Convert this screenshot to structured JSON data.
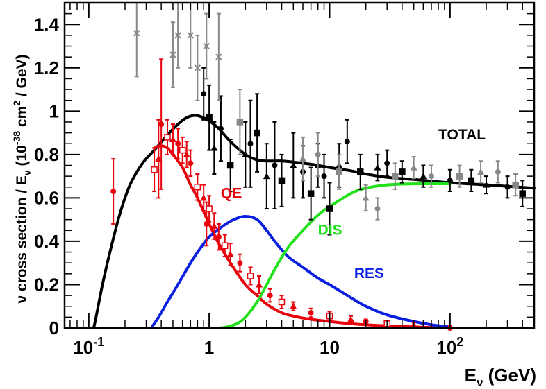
{
  "chart_data": {
    "type": "line",
    "title": "",
    "xlabel": "E",
    "xlabel_sub": "ν",
    "xlabel_unit": " (GeV)",
    "ylabel_parts": {
      "a": "ν cross section / E",
      "sub": "ν",
      "b": " (10",
      "sup": "-38",
      "c": " cm",
      "sup2": "2",
      "d": " / GeV)"
    },
    "xscale": "log",
    "xlim": [
      0.063,
      500
    ],
    "ylim": [
      0,
      1.5
    ],
    "x_ticks": [
      {
        "value": 0.1,
        "base": "10",
        "exp": "-1"
      },
      {
        "value": 1,
        "base": "1",
        "exp": ""
      },
      {
        "value": 10,
        "base": "10",
        "exp": ""
      },
      {
        "value": 100,
        "base": "10",
        "exp": "2"
      }
    ],
    "y_ticks": [
      {
        "value": 0,
        "label": "0"
      },
      {
        "value": 0.2,
        "label": "0.2"
      },
      {
        "value": 0.4,
        "label": "0.4"
      },
      {
        "value": 0.6,
        "label": "0.6"
      },
      {
        "value": 0.8,
        "label": "0.8"
      },
      {
        "value": 1.0,
        "label": "1"
      },
      {
        "value": 1.2,
        "label": "1.2"
      },
      {
        "value": 1.4,
        "label": "1.4"
      }
    ],
    "series": [
      {
        "name": "TOTAL",
        "color": "#000000",
        "x": [
          0.11,
          0.115,
          0.13,
          0.15,
          0.18,
          0.22,
          0.28,
          0.35,
          0.45,
          0.55,
          0.65,
          0.75,
          0.85,
          1.0,
          1.2,
          1.5,
          2.0,
          2.5,
          3.0,
          4.0,
          5.0,
          7.0,
          10,
          15,
          20,
          30,
          50,
          100,
          200,
          500
        ],
        "y": [
          0.0,
          0.05,
          0.2,
          0.35,
          0.52,
          0.66,
          0.76,
          0.82,
          0.89,
          0.94,
          0.97,
          0.98,
          0.975,
          0.955,
          0.92,
          0.86,
          0.8,
          0.775,
          0.77,
          0.77,
          0.765,
          0.755,
          0.74,
          0.725,
          0.71,
          0.695,
          0.685,
          0.67,
          0.66,
          0.645
        ]
      },
      {
        "name": "QE",
        "color": "#e8000b",
        "x": [
          0.35,
          0.4,
          0.45,
          0.5,
          0.6,
          0.7,
          0.8,
          1.0,
          1.2,
          1.5,
          2.0,
          2.5,
          3.0,
          4.0,
          5.0,
          7.0,
          10,
          15,
          20,
          30,
          50,
          100
        ],
        "y": [
          0.83,
          0.84,
          0.83,
          0.8,
          0.74,
          0.66,
          0.6,
          0.48,
          0.39,
          0.3,
          0.2,
          0.15,
          0.11,
          0.07,
          0.055,
          0.04,
          0.03,
          0.02,
          0.015,
          0.01,
          0.005,
          0.0
        ]
      },
      {
        "name": "RES",
        "color": "#0a1fe0",
        "x": [
          0.33,
          0.38,
          0.45,
          0.55,
          0.7,
          0.85,
          1.0,
          1.3,
          1.6,
          2.0,
          2.5,
          3.0,
          3.5,
          4.5,
          6.0,
          8.0,
          10,
          15,
          20,
          30,
          50,
          70,
          100
        ],
        "y": [
          0.0,
          0.05,
          0.12,
          0.2,
          0.3,
          0.37,
          0.42,
          0.47,
          0.5,
          0.515,
          0.5,
          0.45,
          0.4,
          0.33,
          0.28,
          0.23,
          0.2,
          0.14,
          0.1,
          0.06,
          0.03,
          0.015,
          0.005
        ]
      },
      {
        "name": "DIS",
        "color": "#22e01c",
        "x": [
          1.2,
          1.4,
          1.7,
          2.0,
          2.5,
          3.0,
          3.5,
          4.5,
          6.0,
          8.0,
          10,
          15,
          20,
          30,
          50,
          100
        ],
        "y": [
          0.0,
          0.005,
          0.02,
          0.05,
          0.12,
          0.2,
          0.27,
          0.37,
          0.45,
          0.52,
          0.56,
          0.62,
          0.645,
          0.66,
          0.665,
          0.665
        ]
      }
    ],
    "data_points": {
      "red": [
        {
          "x": 0.16,
          "y": 0.63,
          "err": 0.15
        },
        {
          "x": 0.35,
          "y": 0.73,
          "err": 0.1
        },
        {
          "x": 0.38,
          "y": 0.78,
          "err": 0.18
        },
        {
          "x": 0.4,
          "y": 0.94,
          "err": 0.3
        },
        {
          "x": 0.45,
          "y": 0.88,
          "err": 0.08
        },
        {
          "x": 0.5,
          "y": 0.87,
          "err": 0.07
        },
        {
          "x": 0.55,
          "y": 0.85,
          "err": 0.07
        },
        {
          "x": 0.6,
          "y": 0.82,
          "err": 0.06
        },
        {
          "x": 0.65,
          "y": 0.8,
          "err": 0.06
        },
        {
          "x": 0.7,
          "y": 0.76,
          "err": 0.06
        },
        {
          "x": 0.8,
          "y": 0.65,
          "err": 0.06
        },
        {
          "x": 0.9,
          "y": 0.6,
          "err": 0.06
        },
        {
          "x": 0.95,
          "y": 0.48,
          "err": 0.1
        },
        {
          "x": 1.0,
          "y": 0.55,
          "err": 0.06
        },
        {
          "x": 1.1,
          "y": 0.47,
          "err": 0.06
        },
        {
          "x": 1.2,
          "y": 0.42,
          "err": 0.06
        },
        {
          "x": 1.35,
          "y": 0.38,
          "err": 0.05
        },
        {
          "x": 1.5,
          "y": 0.34,
          "err": 0.05
        },
        {
          "x": 1.8,
          "y": 0.3,
          "err": 0.04
        },
        {
          "x": 2.2,
          "y": 0.24,
          "err": 0.04
        },
        {
          "x": 2.6,
          "y": 0.2,
          "err": 0.04
        },
        {
          "x": 3.2,
          "y": 0.15,
          "err": 0.03
        },
        {
          "x": 4.0,
          "y": 0.12,
          "err": 0.03
        },
        {
          "x": 5.0,
          "y": 0.1,
          "err": 0.02
        },
        {
          "x": 7.0,
          "y": 0.07,
          "err": 0.02
        },
        {
          "x": 10,
          "y": 0.055,
          "err": 0.02
        },
        {
          "x": 15,
          "y": 0.04,
          "err": 0.015
        },
        {
          "x": 20,
          "y": 0.03,
          "err": 0.01
        },
        {
          "x": 30,
          "y": 0.02,
          "err": 0.01
        },
        {
          "x": 50,
          "y": 0.015,
          "err": 0.01
        },
        {
          "x": 100,
          "y": 0.0,
          "err": 0.01
        }
      ],
      "black": [
        {
          "x": 0.9,
          "y": 1.08,
          "err": 0.12
        },
        {
          "x": 1.0,
          "y": 0.97,
          "err": 0.15
        },
        {
          "x": 1.1,
          "y": 0.83,
          "err": 0.12
        },
        {
          "x": 1.25,
          "y": 0.92,
          "err": 0.15
        },
        {
          "x": 1.5,
          "y": 0.75,
          "err": 0.12
        },
        {
          "x": 2.0,
          "y": 0.8,
          "err": 0.15
        },
        {
          "x": 2.2,
          "y": 0.85,
          "err": 0.2
        },
        {
          "x": 2.5,
          "y": 0.9,
          "err": 0.18
        },
        {
          "x": 3.0,
          "y": 0.7,
          "err": 0.15
        },
        {
          "x": 3.5,
          "y": 0.75,
          "err": 0.2
        },
        {
          "x": 4.0,
          "y": 0.68,
          "err": 0.12
        },
        {
          "x": 5.0,
          "y": 0.75,
          "err": 0.15
        },
        {
          "x": 6.0,
          "y": 0.72,
          "err": 0.12
        },
        {
          "x": 7.0,
          "y": 0.62,
          "err": 0.12
        },
        {
          "x": 8.0,
          "y": 0.75,
          "err": 0.1
        },
        {
          "x": 9.0,
          "y": 0.7,
          "err": 0.1
        },
        {
          "x": 10,
          "y": 0.55,
          "err": 0.12
        },
        {
          "x": 12,
          "y": 0.75,
          "err": 0.1
        },
        {
          "x": 14,
          "y": 0.86,
          "err": 0.1
        },
        {
          "x": 18,
          "y": 0.72,
          "err": 0.08
        },
        {
          "x": 25,
          "y": 0.74,
          "err": 0.06
        },
        {
          "x": 30,
          "y": 0.76,
          "err": 0.06
        },
        {
          "x": 40,
          "y": 0.72,
          "err": 0.05
        },
        {
          "x": 60,
          "y": 0.7,
          "err": 0.05
        },
        {
          "x": 100,
          "y": 0.68,
          "err": 0.05
        },
        {
          "x": 150,
          "y": 0.68,
          "err": 0.05
        },
        {
          "x": 200,
          "y": 0.66,
          "err": 0.04
        },
        {
          "x": 300,
          "y": 0.65,
          "err": 0.05
        },
        {
          "x": 400,
          "y": 0.62,
          "err": 0.06
        }
      ],
      "gray": [
        {
          "x": 0.25,
          "y": 1.36,
          "err": 0.2
        },
        {
          "x": 0.5,
          "y": 1.26,
          "err": 0.15
        },
        {
          "x": 0.55,
          "y": 1.35,
          "err": 0.15
        },
        {
          "x": 0.7,
          "y": 1.35,
          "err": 0.15
        },
        {
          "x": 0.8,
          "y": 1.2,
          "err": 0.15
        },
        {
          "x": 0.95,
          "y": 1.3,
          "err": 0.15
        },
        {
          "x": 1.2,
          "y": 1.25,
          "err": 0.2
        },
        {
          "x": 1.8,
          "y": 0.95,
          "err": 0.15
        },
        {
          "x": 6.0,
          "y": 0.78,
          "err": 0.1
        },
        {
          "x": 8.0,
          "y": 0.8,
          "err": 0.1
        },
        {
          "x": 12,
          "y": 0.72,
          "err": 0.08
        },
        {
          "x": 20,
          "y": 0.6,
          "err": 0.06
        },
        {
          "x": 25,
          "y": 0.55,
          "err": 0.05
        },
        {
          "x": 35,
          "y": 0.7,
          "err": 0.06
        },
        {
          "x": 50,
          "y": 0.74,
          "err": 0.05
        },
        {
          "x": 70,
          "y": 0.7,
          "err": 0.05
        },
        {
          "x": 120,
          "y": 0.7,
          "err": 0.05
        },
        {
          "x": 180,
          "y": 0.72,
          "err": 0.05
        },
        {
          "x": 250,
          "y": 0.72,
          "err": 0.05
        },
        {
          "x": 350,
          "y": 0.66,
          "err": 0.05
        }
      ]
    },
    "annotations": [
      {
        "text": "TOTAL",
        "x": 80,
        "y": 0.87,
        "color": "#000000"
      },
      {
        "text": "QE",
        "x": 1.25,
        "y": 0.6,
        "color": "#e8000b"
      },
      {
        "text": "DIS",
        "x": 8,
        "y": 0.43,
        "color": "#22e01c"
      },
      {
        "text": "RES",
        "x": 16,
        "y": 0.23,
        "color": "#0a1fe0"
      }
    ]
  }
}
